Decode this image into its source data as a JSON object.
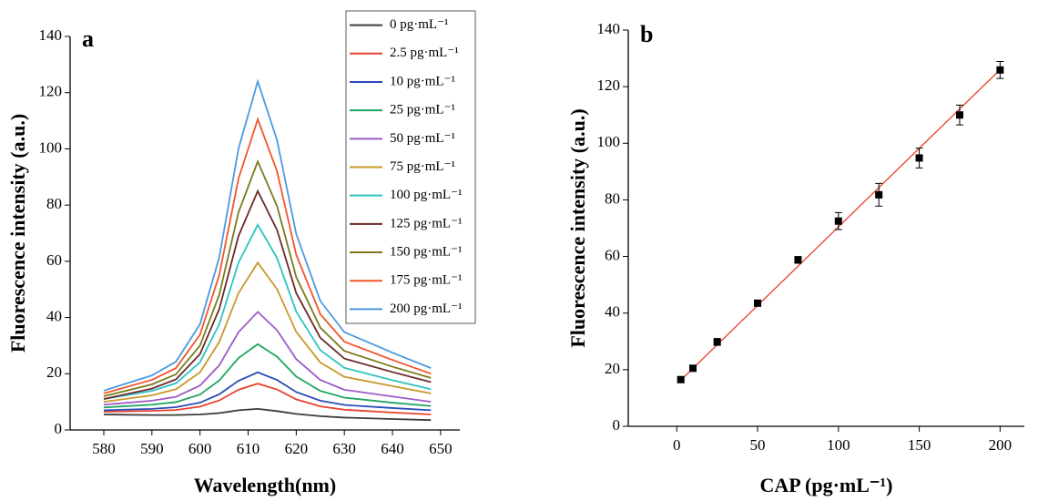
{
  "chart_data": [
    {
      "type": "line",
      "panel_label": "a",
      "x_label": "Wavelength(nm)",
      "y_label": "Fluorescence intensity (a.u.)",
      "x": [
        580,
        590,
        595,
        600,
        604,
        608,
        612,
        616,
        620,
        625,
        630,
        640,
        648
      ],
      "series": [
        {
          "name": "0 pg·mL⁻¹",
          "color": "#3b3b3b",
          "values": [
            5.5,
            5.3,
            5.3,
            5.5,
            6.0,
            7.0,
            7.5,
            6.7,
            5.7,
            4.9,
            4.4,
            3.9,
            3.5
          ]
        },
        {
          "name": "2.5 pg·mL⁻¹",
          "color": "#e8412c",
          "values": [
            6.5,
            6.8,
            7.1,
            8.3,
            10.5,
            14.3,
            16.5,
            14.4,
            10.9,
            8.4,
            7.2,
            6.2,
            5.5
          ]
        },
        {
          "name": "10 pg·mL⁻¹",
          "color": "#2a4cb8",
          "values": [
            7,
            7.5,
            8.1,
            9.7,
            12.7,
            17.5,
            20.5,
            17.8,
            13.5,
            10.4,
            8.9,
            7.8,
            7
          ]
        },
        {
          "name": "25 pg·mL⁻¹",
          "color": "#1fa55f",
          "values": [
            8,
            9.0,
            9.9,
            12.6,
            17.6,
            25.6,
            30.5,
            26.1,
            19.0,
            13.9,
            11.5,
            9.7,
            8.5
          ]
        },
        {
          "name": "50 pg·mL⁻¹",
          "color": "#9e5cc6",
          "values": [
            9,
            10.4,
            11.8,
            15.8,
            23.0,
            34.8,
            42,
            35.5,
            25.2,
            17.8,
            14.3,
            11.9,
            10
          ]
        },
        {
          "name": "75 pg·mL⁻¹",
          "color": "#c8982a",
          "values": [
            10,
            12.3,
            14.5,
            20.5,
            31.3,
            48.7,
            59.5,
            50.1,
            34.9,
            24.0,
            18.9,
            15.6,
            13
          ]
        },
        {
          "name": "100 pg·mL⁻¹",
          "color": "#2ec4c4",
          "values": [
            11,
            13.9,
            16.6,
            24.1,
            37.6,
            59.5,
            73,
            61.2,
            42.1,
            28.4,
            22.1,
            17.7,
            14.5
          ]
        },
        {
          "name": "125 pg·mL⁻¹",
          "color": "#6b2a2a",
          "values": [
            11,
            14.7,
            18.0,
            27.0,
            43.0,
            69.0,
            85,
            71.2,
            48.7,
            32.8,
            25.4,
            20.6,
            17
          ]
        },
        {
          "name": "150 pg·mL⁻¹",
          "color": "#7a7a1e",
          "values": [
            12,
            16.2,
            19.8,
            30.0,
            48.1,
            77.4,
            95.5,
            79.7,
            54.4,
            36.4,
            28.1,
            22.5,
            18.5
          ]
        },
        {
          "name": "175 pg·mL⁻¹",
          "color": "#f2552c",
          "values": [
            13,
            17.8,
            22.0,
            33.9,
            55.1,
            89.4,
            110.5,
            92.1,
            62.3,
            41.2,
            31.4,
            24.9,
            20
          ]
        },
        {
          "name": "200 pg·mL⁻¹",
          "color": "#4a9ae0",
          "values": [
            14,
            19.4,
            24.3,
            37.6,
            61.4,
            100.1,
            124,
            103.2,
            69.7,
            45.9,
            34.8,
            27.5,
            22
          ]
        }
      ],
      "xlim": [
        573,
        654
      ],
      "ylim": [
        0,
        140
      ],
      "xticks": [
        580,
        590,
        600,
        610,
        620,
        630,
        640,
        650
      ],
      "yticks": [
        0,
        20,
        40,
        60,
        80,
        100,
        120,
        140
      ],
      "legend": "upper right"
    },
    {
      "type": "scatter",
      "panel_label": "b",
      "x_label": "CAP (pg·mL⁻¹)",
      "y_label": "Fluorescence intensity (a.u.)",
      "x": [
        2.5,
        10,
        25,
        50,
        75,
        100,
        125,
        150,
        175,
        200
      ],
      "series": [
        {
          "color": "#000000",
          "values": [
            16.5,
            20.5,
            29.8,
            43.5,
            58.8,
            72.5,
            81.8,
            94.8,
            110,
            125.9
          ],
          "errors": [
            1,
            1,
            1.2,
            1,
            1.2,
            3,
            4,
            3.5,
            3.5,
            3
          ]
        }
      ],
      "fit": {
        "x": [
          2.5,
          200
        ],
        "values": [
          16.3,
          126
        ],
        "color": "#e8412c"
      },
      "xlim": [
        -30,
        215
      ],
      "ylim": [
        0,
        140
      ],
      "xticks": [
        0,
        50,
        100,
        150,
        200
      ],
      "yticks": [
        0,
        20,
        40,
        60,
        80,
        100,
        120,
        140
      ]
    }
  ]
}
